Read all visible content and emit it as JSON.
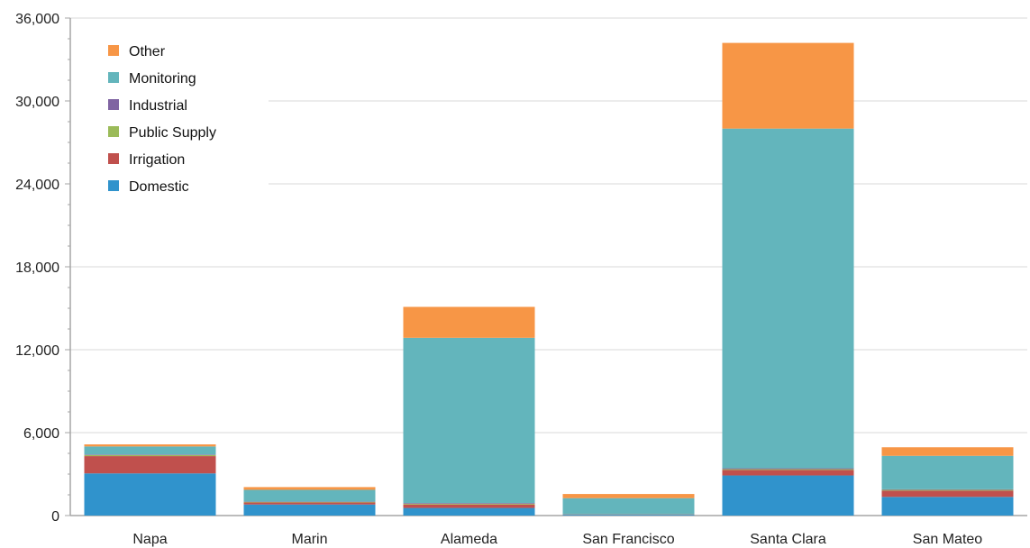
{
  "chart_data": {
    "type": "bar",
    "stacked": true,
    "title": "",
    "xlabel": "",
    "ylabel": "",
    "categories": [
      "Napa",
      "Marin",
      "Alameda",
      "San Francisco",
      "Santa Clara",
      "San Mateo"
    ],
    "ylim": [
      0,
      36000
    ],
    "yticks": [
      0,
      6000,
      12000,
      18000,
      24000,
      30000,
      36000
    ],
    "ytick_labels": [
      "0",
      "6,000",
      "12,000",
      "18,000",
      "24,000",
      "30,000",
      "36,000"
    ],
    "grid": true,
    "legend_position": "top-left",
    "series": [
      {
        "name": "Domestic",
        "color": "#3093CC",
        "values": [
          3050,
          800,
          550,
          60,
          2900,
          1350
        ]
      },
      {
        "name": "Irrigation",
        "color": "#C0504D",
        "values": [
          1250,
          150,
          250,
          20,
          400,
          450
        ]
      },
      {
        "name": "Public Supply",
        "color": "#9BBB59",
        "values": [
          80,
          40,
          60,
          10,
          60,
          60
        ]
      },
      {
        "name": "Industrial",
        "color": "#8064A2",
        "values": [
          40,
          20,
          50,
          10,
          60,
          40
        ]
      },
      {
        "name": "Monitoring",
        "color": "#63B5BC",
        "values": [
          580,
          850,
          11950,
          1160,
          24580,
          2420
        ]
      },
      {
        "name": "Other",
        "color": "#F79646",
        "values": [
          150,
          200,
          2240,
          300,
          6200,
          620
        ]
      }
    ]
  }
}
